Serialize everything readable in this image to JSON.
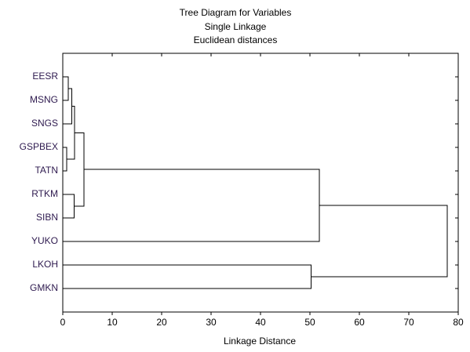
{
  "chart_data": {
    "type": "dendrogram",
    "title": "Tree Diagram for  Variables",
    "subtitle": [
      "Single Linkage",
      "Euclidean distances"
    ],
    "xlabel": "Linkage Distance",
    "categories": [
      "EESR",
      "MSNG",
      "SNGS",
      "GSPBEX",
      "TATN",
      "RTKM",
      "SIBN",
      "YUKO",
      "LKOH",
      "GMKN"
    ],
    "merges": [
      {
        "left": 0,
        "right": 1,
        "height": 1.1
      },
      {
        "left": 10,
        "right": 2,
        "height": 1.8
      },
      {
        "left": 3,
        "right": 4,
        "height": 0.8
      },
      {
        "left": 5,
        "right": 6,
        "height": 2.3
      },
      {
        "left": 11,
        "right": 12,
        "height": 2.4
      },
      {
        "left": 14,
        "right": 13,
        "height": 4.3
      },
      {
        "left": 15,
        "right": 7,
        "height": 51.9
      },
      {
        "left": 8,
        "right": 9,
        "height": 50.2
      },
      {
        "left": 16,
        "right": 17,
        "height": 77.8
      }
    ],
    "xlim": [
      0,
      80
    ],
    "xticks": [
      0,
      10,
      20,
      30,
      40,
      50,
      60,
      70,
      80
    ],
    "color": "#000000"
  }
}
